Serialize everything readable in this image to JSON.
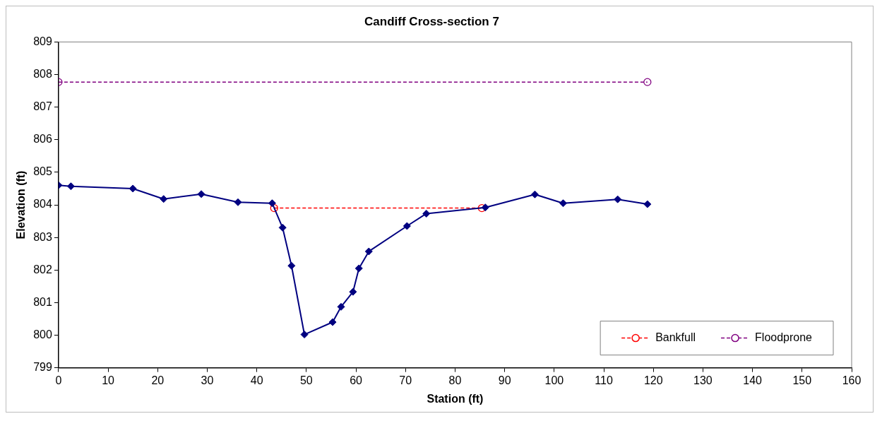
{
  "chart_data": {
    "type": "line",
    "title": "Candiff Cross-section 7",
    "xlabel": "Station (ft)",
    "ylabel": "Elevation (ft)",
    "xlim": [
      0,
      160
    ],
    "xticks": [
      0,
      10,
      20,
      30,
      40,
      50,
      60,
      70,
      80,
      90,
      100,
      110,
      120,
      130,
      140,
      150,
      160
    ],
    "ylim": [
      799,
      809
    ],
    "yticks": [
      799,
      800,
      801,
      802,
      803,
      804,
      805,
      806,
      807,
      808,
      809
    ],
    "grid": false,
    "legend": "bottom right",
    "series": [
      {
        "color": "#000080",
        "marker": "diamond",
        "line_style": "solid",
        "x": [
          0,
          2.5,
          15,
          21.2,
          28.8,
          36.2,
          43.1,
          45.2,
          47,
          49.6,
          55.3,
          57,
          59.4,
          60.6,
          62.6,
          70.3,
          74.2,
          86.1,
          96.1,
          101.8,
          112.8,
          118.8
        ],
        "values": [
          804.6,
          804.57,
          804.5,
          804.18,
          804.33,
          804.08,
          804.05,
          803.3,
          802.13,
          800.02,
          800.4,
          800.87,
          801.33,
          802.05,
          802.57,
          803.35,
          803.73,
          803.92,
          804.32,
          804.05,
          804.17,
          804.02
        ]
      },
      {
        "name": "Bankfull",
        "color": "#ff0000",
        "marker": "circle",
        "line_style": "dashed",
        "x": [
          43.5,
          85.4
        ],
        "values": [
          803.9,
          803.9
        ]
      },
      {
        "name": "Floodprone",
        "color": "#800080",
        "marker": "circle",
        "line_style": "dashed",
        "x": [
          0,
          118.8
        ],
        "values": [
          807.77,
          807.77
        ]
      }
    ]
  }
}
